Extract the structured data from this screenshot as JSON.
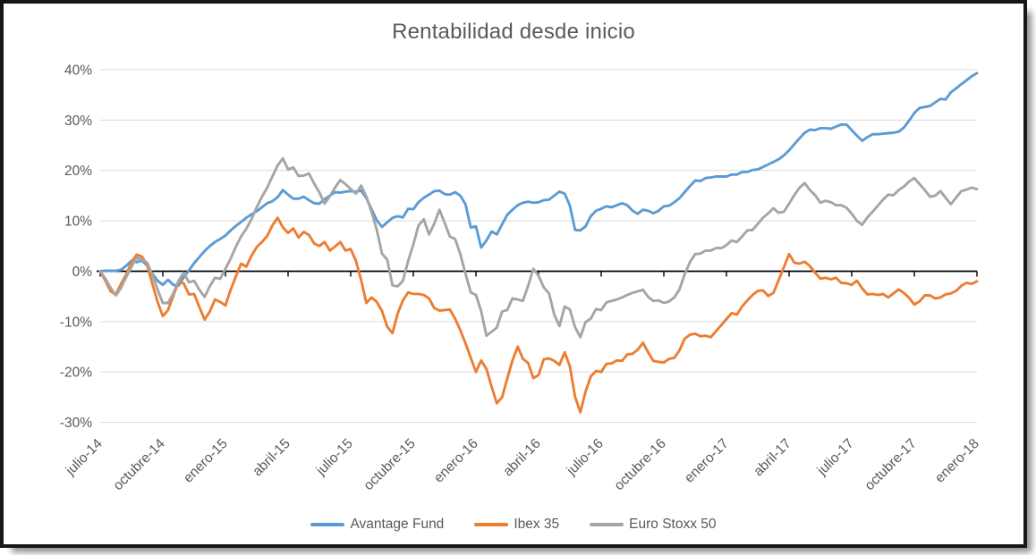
{
  "window": {
    "background": "#FFFFFF",
    "frame_border_color": "#161616",
    "shadow_color": "#8F8F8F"
  },
  "styles": {
    "text_color": "#595959",
    "gridline_color": "#D9D9D9",
    "axis_color": "#000000",
    "plot_background": "#FFFFFF"
  },
  "chart_data": {
    "type": "line",
    "title": "Rentabilidad desde inicio",
    "xlabel": "",
    "ylabel": "",
    "ylim": [
      -30,
      40
    ],
    "y_gridline_step_pct": 10,
    "grid": true,
    "legend_position": "bottom",
    "y_tick_labels": [
      "40%",
      "30%",
      "20%",
      "10%",
      "0%",
      "-10%",
      "-20%",
      "-30%"
    ],
    "x_tick_labels": [
      "julio-14",
      "octubre-14",
      "enero-15",
      "abril-15",
      "julio-15",
      "octubre-15",
      "enero-16",
      "abril-16",
      "julio-16",
      "octubre-16",
      "enero-17",
      "abril-17",
      "julio-17",
      "octubre-17",
      "enero-18"
    ],
    "x_range_months": [
      0,
      42
    ],
    "sample_interval_months": 0.25,
    "series": [
      {
        "name": "Avantage Fund",
        "color": "#5B9BD5",
        "values": [
          0,
          0.1,
          0.1,
          0.1,
          0.3,
          1.1,
          2.1,
          1.8,
          2.1,
          1.1,
          -0.5,
          -1.9,
          -2.7,
          -1.7,
          -2.7,
          -2.9,
          -1.2,
          0.2,
          1.6,
          2.8,
          4,
          5,
          5.8,
          6.4,
          7.1,
          8.1,
          9,
          9.8,
          10.6,
          11.3,
          11.9,
          12.7,
          13.5,
          13.9,
          14.7,
          16.1,
          15.2,
          14.4,
          14.4,
          14.8,
          14.1,
          13.5,
          13.4,
          14.3,
          15,
          15.7,
          15.6,
          15.8,
          15.9,
          15.8,
          16,
          14.5,
          12.3,
          10.1,
          8.8,
          9.7,
          10.6,
          10.9,
          10.7,
          12.4,
          12.3,
          13.7,
          14.6,
          15.2,
          15.9,
          16,
          15.3,
          15.2,
          15.7,
          15,
          13.3,
          8.7,
          8.9,
          4.7,
          6.1,
          7.9,
          7.3,
          9.3,
          11.2,
          12.2,
          13.1,
          13.6,
          13.8,
          13.6,
          13.7,
          14.1,
          14.2,
          15,
          15.8,
          15.4,
          13,
          8.2,
          8.1,
          8.9,
          10.9,
          12,
          12.4,
          12.9,
          12.7,
          13.1,
          13.5,
          13.1,
          12,
          11.4,
          12.2,
          12,
          11.5,
          12,
          12.9,
          13,
          13.7,
          14.5,
          15.7,
          16.9,
          18,
          17.9,
          18.5,
          18.6,
          18.8,
          18.8,
          18.8,
          19.2,
          19.2,
          19.7,
          19.7,
          20.1,
          20.2,
          20.7,
          21.2,
          21.7,
          22.2,
          23,
          24,
          25.2,
          26.4,
          27.5,
          28.1,
          28,
          28.4,
          28.4,
          28.3,
          28.7,
          29.1,
          29.1,
          28,
          26.9,
          25.9,
          26.6,
          27.2,
          27.2,
          27.3,
          27.4,
          27.5,
          27.7,
          28.5,
          29.9,
          31.4,
          32.4,
          32.6,
          32.8,
          33.5,
          34.2,
          34.1,
          35.5,
          36.3,
          37.1,
          37.9,
          38.7,
          39.3
        ]
      },
      {
        "name": "Ibex 35",
        "color": "#ED7D31",
        "values": [
          0,
          -1.9,
          -4,
          -4.6,
          -2.5,
          -0.6,
          1.8,
          3.3,
          2.9,
          1.2,
          -2.5,
          -6.1,
          -8.9,
          -7.7,
          -4.9,
          -2.1,
          -2.4,
          -4.6,
          -4.5,
          -7.1,
          -9.6,
          -8,
          -5.6,
          -6.1,
          -6.8,
          -3.7,
          -1,
          1.5,
          0.9,
          3.1,
          4.8,
          5.8,
          7,
          9.1,
          10.6,
          8.7,
          7.6,
          8.5,
          6.7,
          7.8,
          7.2,
          5.5,
          5,
          5.8,
          4.1,
          4.9,
          5.8,
          4.1,
          4.4,
          2.1,
          -1.8,
          -6.3,
          -5.2,
          -6.1,
          -7.9,
          -11,
          -12.3,
          -8.4,
          -5.8,
          -4.2,
          -4.5,
          -4.5,
          -4.7,
          -5.4,
          -7.3,
          -7.8,
          -7.7,
          -7.6,
          -9.4,
          -11.7,
          -14.3,
          -17.2,
          -20,
          -17.7,
          -19.4,
          -22.9,
          -26.2,
          -25,
          -21.3,
          -17.7,
          -15,
          -17.4,
          -18.2,
          -21.2,
          -20.6,
          -17.5,
          -17.3,
          -17.8,
          -18.6,
          -16.1,
          -18.9,
          -24.9,
          -28,
          -23.9,
          -20.9,
          -19.8,
          -20,
          -18.4,
          -18.3,
          -17.7,
          -17.8,
          -16.5,
          -16.4,
          -15.6,
          -14.2,
          -16.1,
          -17.8,
          -18,
          -18.1,
          -17.4,
          -17.2,
          -15.7,
          -13.4,
          -12.6,
          -12.4,
          -12.9,
          -12.8,
          -13.1,
          -11.9,
          -10.7,
          -9.5,
          -8.3,
          -8.6,
          -7,
          -5.8,
          -4.7,
          -3.9,
          -3.8,
          -4.9,
          -4.3,
          -1.8,
          0.8,
          3.4,
          1.7,
          1.5,
          1.9,
          1,
          -0.3,
          -1.5,
          -1.3,
          -1.6,
          -1.3,
          -2.3,
          -2.4,
          -2.7,
          -1.9,
          -3.4,
          -4.6,
          -4.5,
          -4.7,
          -4.5,
          -5.2,
          -4.4,
          -3.6,
          -4.3,
          -5.3,
          -6.6,
          -6,
          -4.8,
          -4.8,
          -5.4,
          -5.2,
          -4.6,
          -4.4,
          -3.9,
          -2.9,
          -2.3,
          -2.5,
          -2
        ]
      },
      {
        "name": "Euro Stoxx 50",
        "color": "#A5A5A5",
        "values": [
          0,
          -1.5,
          -3.3,
          -4.8,
          -3.3,
          -1.1,
          0.9,
          2.7,
          2.3,
          1.7,
          -0.7,
          -3.7,
          -6.3,
          -6.3,
          -4.4,
          -1.9,
          -0.3,
          -2.2,
          -1.9,
          -3.7,
          -5.1,
          -3,
          -1.3,
          -1.5,
          0.5,
          2.5,
          4.9,
          6.9,
          8.4,
          10.4,
          12.7,
          14.8,
          16.6,
          18.8,
          21,
          22.4,
          20.2,
          20.6,
          18.9,
          19,
          19.4,
          17.4,
          15.6,
          13.4,
          14.9,
          16.6,
          18.1,
          17.3,
          16.3,
          15.4,
          17,
          14.8,
          11.8,
          8.2,
          3.5,
          2.3,
          -2.8,
          -3,
          -1.9,
          2,
          5.3,
          9.1,
          10.3,
          7.3,
          9.4,
          12.2,
          9.6,
          6.9,
          6.4,
          3.4,
          -0.5,
          -4.2,
          -4.7,
          -7.9,
          -12.8,
          -12,
          -11.2,
          -8,
          -7.7,
          -5.4,
          -5.6,
          -5.9,
          -2.9,
          0.5,
          -0.9,
          -3.2,
          -4.4,
          -8.6,
          -10.9,
          -7,
          -7.6,
          -11.1,
          -13.1,
          -10.1,
          -9.4,
          -7.5,
          -7.7,
          -6.2,
          -5.9,
          -5.6,
          -5.2,
          -4.7,
          -4.3,
          -4,
          -3.7,
          -5.1,
          -5.9,
          -5.8,
          -6.3,
          -6,
          -5.2,
          -3.6,
          -0.6,
          1.8,
          3.4,
          3.5,
          4.1,
          4.1,
          4.6,
          4.6,
          5.2,
          6.1,
          5.8,
          6.9,
          8.1,
          8.2,
          9.4,
          10.6,
          11.5,
          12.5,
          11.6,
          11.8,
          13.4,
          15.1,
          16.6,
          17.5,
          16.1,
          15.1,
          13.6,
          14,
          13.7,
          13.1,
          13.1,
          12.6,
          11.4,
          10,
          9.2,
          10.7,
          11.8,
          13,
          14.2,
          15.2,
          15.1,
          16.1,
          16.8,
          17.8,
          18.5,
          17.3,
          16.1,
          14.8,
          15,
          15.9,
          14.6,
          13.3,
          14.6,
          15.9,
          16.2,
          16.6,
          16.3
        ]
      }
    ]
  }
}
